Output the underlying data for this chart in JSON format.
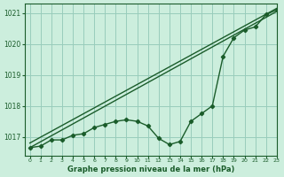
{
  "title": "Graphe pression niveau de la mer (hPa)",
  "background_color": "#cceedd",
  "grid_color": "#99ccbb",
  "line_color": "#1a5c2a",
  "xlim": [
    -0.5,
    23
  ],
  "ylim": [
    1016.4,
    1021.3
  ],
  "yticks": [
    1017,
    1018,
    1019,
    1020,
    1021
  ],
  "xticks": [
    0,
    1,
    2,
    3,
    4,
    5,
    6,
    7,
    8,
    9,
    10,
    11,
    12,
    13,
    14,
    15,
    16,
    17,
    18,
    19,
    20,
    21,
    22,
    23
  ],
  "hours": [
    0,
    1,
    2,
    3,
    4,
    5,
    6,
    7,
    8,
    9,
    10,
    11,
    12,
    13,
    14,
    15,
    16,
    17,
    18,
    19,
    20,
    21,
    22,
    23
  ],
  "pressure": [
    1016.65,
    1016.7,
    1016.9,
    1016.9,
    1017.05,
    1017.1,
    1017.3,
    1017.4,
    1017.5,
    1017.55,
    1017.5,
    1017.35,
    1016.95,
    1016.75,
    1016.85,
    1017.5,
    1017.75,
    1018.0,
    1019.6,
    1020.2,
    1020.45,
    1020.55,
    1020.95,
    1021.1
  ],
  "ref_line1_x": [
    0,
    23
  ],
  "ref_line1_y": [
    1016.65,
    1021.05
  ],
  "ref_line2_x": [
    0,
    23
  ],
  "ref_line2_y": [
    1016.8,
    1021.15
  ]
}
